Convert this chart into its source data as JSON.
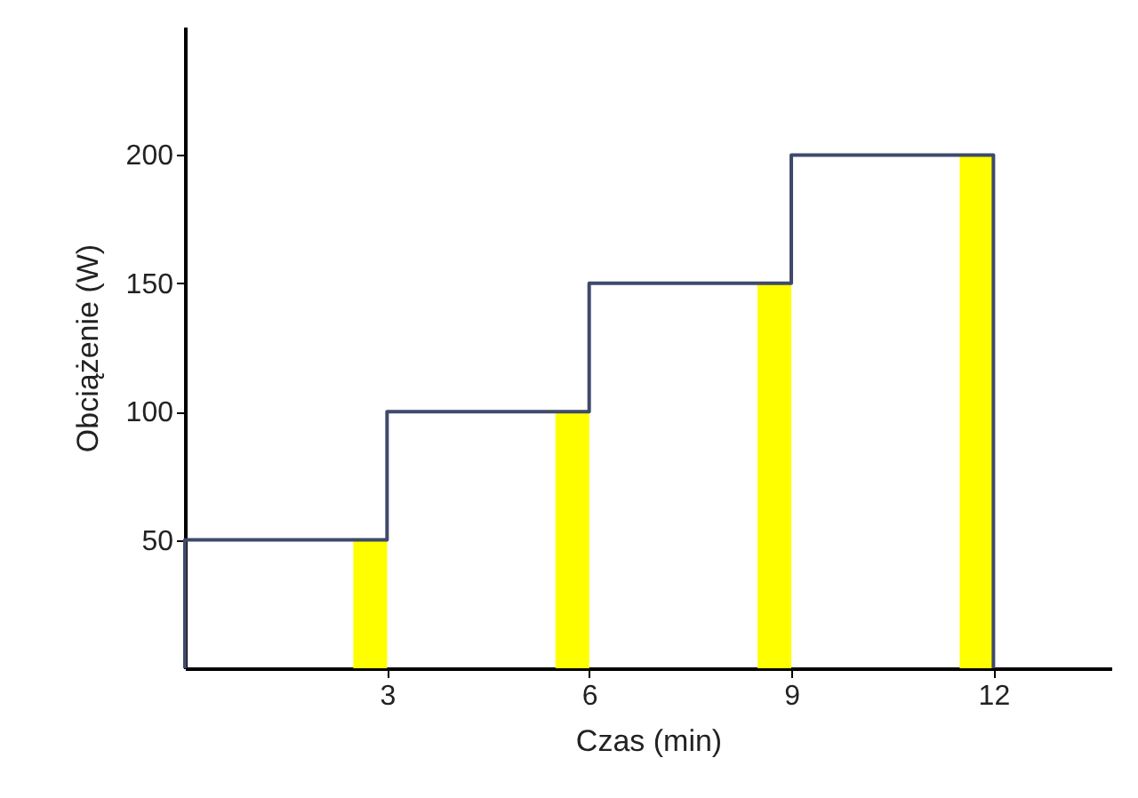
{
  "chart_data": {
    "type": "step",
    "xlabel": "Czas (min)",
    "ylabel": "Obciążenie (W)",
    "xlim": [
      0,
      13.75
    ],
    "xticks": [
      3,
      6,
      9,
      12
    ],
    "ylim": [
      0,
      250
    ],
    "yticks": [
      50,
      100,
      150,
      200
    ],
    "grid": false,
    "series": [
      {
        "type": "bar",
        "color": "#ffff00",
        "x": [
          2.75,
          5.75,
          8.75,
          11.75
        ],
        "values": [
          50,
          100,
          150,
          200
        ]
      },
      {
        "color": "#3f4a6b",
        "x": [
          0,
          0,
          3,
          6,
          9,
          12,
          12
        ],
        "values": [
          0,
          50,
          100,
          150,
          200,
          200,
          0
        ]
      }
    ]
  }
}
